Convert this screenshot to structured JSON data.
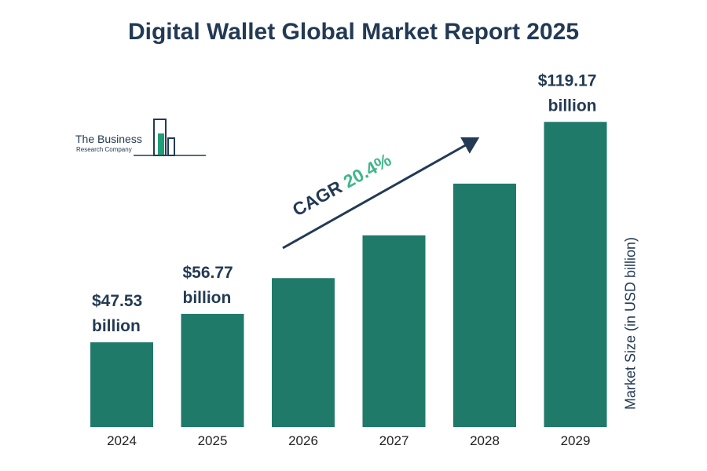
{
  "logo": {
    "line1": "The Business",
    "line2": "Research Company"
  },
  "cagr": {
    "label": "CAGR",
    "value": "20.4%"
  },
  "colors": {
    "bar": "#1f7a6a",
    "text": "#233a54",
    "accent": "#3fb68a"
  },
  "chart_data": {
    "type": "bar",
    "title": "Digital Wallet Global Market Report 2025",
    "categories": [
      "2024",
      "2025",
      "2026",
      "2027",
      "2028",
      "2029"
    ],
    "values": [
      47.53,
      56.77,
      68.4,
      82.3,
      99.1,
      119.17
    ],
    "data_labels": [
      {
        "index": 0,
        "line1": "$47.53",
        "line2": "billion"
      },
      {
        "index": 1,
        "line1": "$56.77",
        "line2": "billion"
      },
      {
        "index": 5,
        "line1": "$119.17",
        "line2": "billion"
      }
    ],
    "xlabel": "",
    "ylabel": "Market Size (in USD billion)",
    "ylim": [
      20,
      120
    ],
    "grid": false,
    "legend": "none"
  }
}
